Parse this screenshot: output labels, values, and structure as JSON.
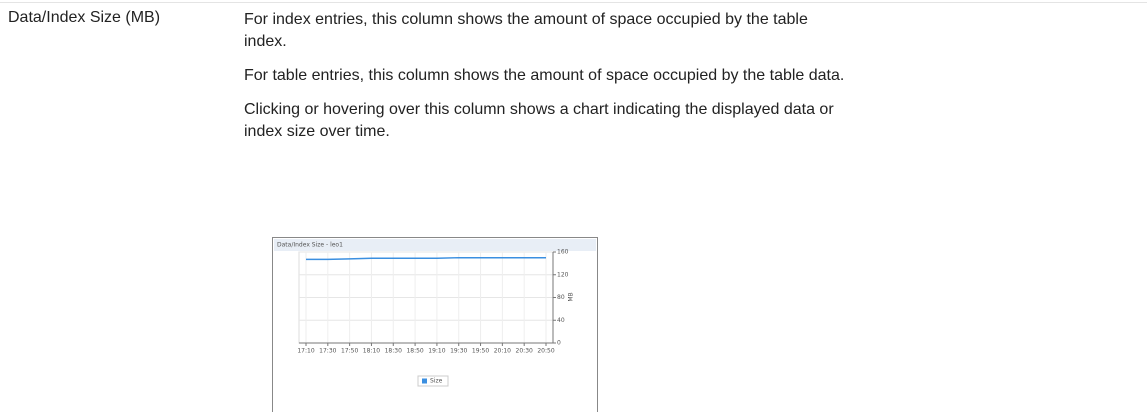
{
  "term": "Data/Index Size (MB)",
  "paragraphs": [
    "For index entries, this column shows the amount of space occupied by the table index.",
    "For table entries, this column shows the amount of space occupied by the table data.",
    "Clicking or hovering over this column shows a chart indicating the displayed data or index size over time."
  ],
  "chart_data": {
    "type": "line",
    "title": "Data/Index Size - leo1",
    "y_label": "MB",
    "categories": [
      "17:10",
      "17:30",
      "17:50",
      "18:10",
      "18:30",
      "18:50",
      "19:10",
      "19:30",
      "19:50",
      "20:10",
      "20:30",
      "20:50"
    ],
    "series": [
      {
        "name": "Size",
        "color": "#3b8fe0",
        "values": [
          147,
          147,
          148,
          149,
          149,
          149,
          149,
          150,
          150,
          150,
          150,
          150
        ]
      }
    ],
    "ylim": [
      0,
      160
    ],
    "yticks": [
      0,
      40,
      80,
      120,
      160
    ],
    "grid": true
  }
}
